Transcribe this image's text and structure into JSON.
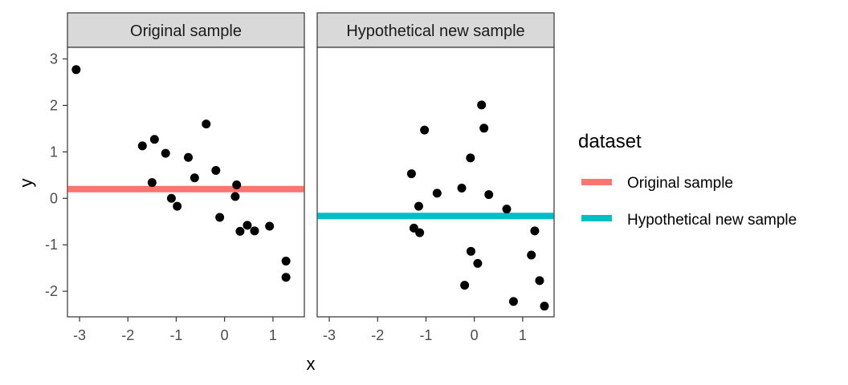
{
  "chart_data": {
    "type": "scatter",
    "xlabel": "x",
    "ylabel": "y",
    "xlim": [
      -3.25,
      1.65
    ],
    "ylim": [
      -2.55,
      3.25
    ],
    "x_ticks": [
      "-3",
      "-2",
      "-1",
      "0",
      "1"
    ],
    "x_tick_values": [
      -3,
      -2,
      -1,
      0,
      1
    ],
    "y_ticks": [
      "-2",
      "-1",
      "0",
      "1",
      "2",
      "3"
    ],
    "y_tick_values": [
      -2,
      -1,
      0,
      1,
      2,
      3
    ],
    "legend": {
      "title": "dataset",
      "placement": "right",
      "entries": [
        {
          "label": "Original sample",
          "color": "#F8766D"
        },
        {
          "label": "Hypothetical new sample",
          "color": "#00BFC4"
        }
      ]
    },
    "point_color": "#000000",
    "panels": [
      {
        "strip": "Original sample",
        "mean_line": {
          "y": 0.2,
          "color": "#F8766D"
        },
        "points": [
          {
            "x": -3.07,
            "y": 2.77
          },
          {
            "x": -1.7,
            "y": 1.13
          },
          {
            "x": -1.45,
            "y": 1.27
          },
          {
            "x": -1.5,
            "y": 0.34
          },
          {
            "x": -1.22,
            "y": 0.97
          },
          {
            "x": -1.1,
            "y": 0.0
          },
          {
            "x": -0.98,
            "y": -0.17
          },
          {
            "x": -0.75,
            "y": 0.88
          },
          {
            "x": -0.62,
            "y": 0.44
          },
          {
            "x": -0.38,
            "y": 1.6
          },
          {
            "x": -0.18,
            "y": 0.6
          },
          {
            "x": -0.1,
            "y": -0.41
          },
          {
            "x": 0.25,
            "y": 0.29
          },
          {
            "x": 0.22,
            "y": 0.04
          },
          {
            "x": 0.32,
            "y": -0.71
          },
          {
            "x": 0.47,
            "y": -0.58
          },
          {
            "x": 0.62,
            "y": -0.7
          },
          {
            "x": 0.93,
            "y": -0.6
          },
          {
            "x": 1.27,
            "y": -1.35
          },
          {
            "x": 1.27,
            "y": -1.7
          }
        ]
      },
      {
        "strip": "Hypothetical new sample",
        "mean_line": {
          "y": -0.38,
          "color": "#00BFC4"
        },
        "points": [
          {
            "x": -1.3,
            "y": 0.53
          },
          {
            "x": -1.25,
            "y": -0.64
          },
          {
            "x": -1.15,
            "y": -0.17
          },
          {
            "x": -1.13,
            "y": -0.74
          },
          {
            "x": -1.03,
            "y": 1.47
          },
          {
            "x": -0.77,
            "y": 0.11
          },
          {
            "x": -0.26,
            "y": 0.22
          },
          {
            "x": -0.2,
            "y": -1.87
          },
          {
            "x": -0.08,
            "y": 0.87
          },
          {
            "x": -0.07,
            "y": -1.14
          },
          {
            "x": 0.07,
            "y": -1.4
          },
          {
            "x": 0.15,
            "y": 2.01
          },
          {
            "x": 0.2,
            "y": 1.51
          },
          {
            "x": 0.3,
            "y": 0.08
          },
          {
            "x": 0.67,
            "y": -0.23
          },
          {
            "x": 0.81,
            "y": -2.22
          },
          {
            "x": 1.18,
            "y": -1.22
          },
          {
            "x": 1.25,
            "y": -0.7
          },
          {
            "x": 1.35,
            "y": -1.77
          },
          {
            "x": 1.45,
            "y": -2.32
          }
        ]
      }
    ]
  }
}
